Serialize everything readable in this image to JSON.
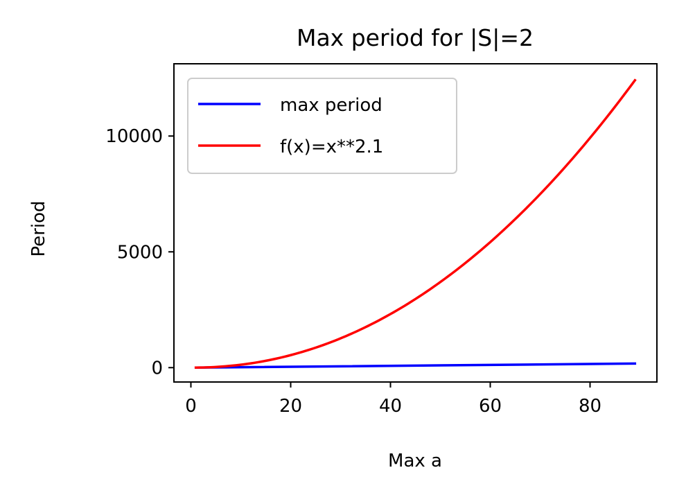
{
  "chart_data": {
    "type": "line",
    "title": "Max period for |S|=2",
    "xlabel": "Max a",
    "ylabel": "Period",
    "xlim": [
      -3.4,
      93.4
    ],
    "ylim": [
      -620,
      13120
    ],
    "xticks": [
      0,
      20,
      40,
      60,
      80
    ],
    "yticks": [
      0,
      5000,
      10000
    ],
    "grid": false,
    "legend_position": "top-left",
    "series": [
      {
        "name": "max period",
        "color": "#0000ff",
        "kind": "linear",
        "x": [
          1,
          89
        ],
        "y": [
          0,
          176
        ]
      },
      {
        "name": "f(x)=x**2.1",
        "color": "#ff0000",
        "kind": "power",
        "exponent": 2.1,
        "x_range": [
          1,
          89
        ]
      }
    ]
  }
}
